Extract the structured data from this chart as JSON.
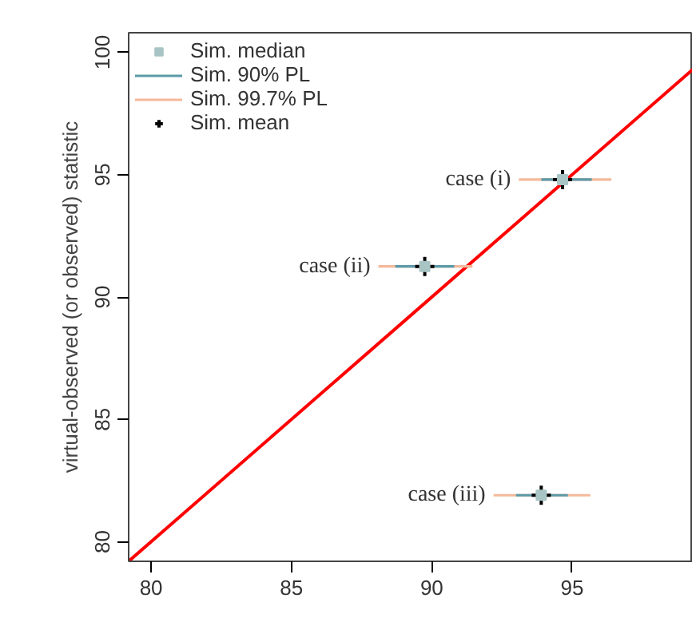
{
  "chart_data": {
    "type": "scatter",
    "ylabel": "virtual-observed (or observed) statistic",
    "xlim": [
      79.2,
      99.3
    ],
    "ylim": [
      79.2,
      100.8
    ],
    "xticks": [
      80,
      85,
      90,
      95
    ],
    "yticks": [
      80,
      85,
      90,
      95,
      100
    ],
    "grid": false,
    "legend": "top left",
    "series": [
      {
        "name": "Sim. median",
        "color": "#a9c4c4",
        "marker": "square",
        "x": [
          94.66,
          89.75,
          93.9
        ],
        "values": [
          94.8,
          91.25,
          81.9
        ]
      },
      {
        "name": "Sim. 90% PL",
        "type": "line",
        "color": "#5b9aa8",
        "x": [
          93.9,
          95.7
        ],
        "values": [
          94.8,
          94.8
        ]
      },
      {
        "type": "line",
        "color": "#5b9aa8",
        "x": [
          88.7,
          90.8
        ],
        "values": [
          91.25,
          91.25
        ]
      },
      {
        "type": "line",
        "color": "#5b9aa8",
        "x": [
          93.0,
          94.85
        ],
        "values": [
          81.9,
          81.9
        ]
      },
      {
        "name": "Sim. 99.7% PL",
        "type": "line",
        "color": "#f5b89a",
        "x": [
          93.1,
          96.4
        ],
        "values": [
          94.8,
          94.8
        ]
      },
      {
        "type": "line",
        "color": "#f5b89a",
        "x": [
          88.1,
          91.45
        ],
        "values": [
          91.25,
          91.25
        ]
      },
      {
        "type": "line",
        "color": "#f5b89a",
        "x": [
          92.2,
          95.65
        ],
        "values": [
          81.9,
          81.9
        ]
      },
      {
        "name": "Sim. mean",
        "color": "#000000",
        "marker": "cross",
        "x": [
          94.66,
          89.75,
          93.9
        ],
        "values": [
          94.8,
          91.25,
          81.9
        ]
      },
      {
        "type": "line",
        "color": "#ff0000",
        "x": [
          79.2,
          99.3
        ],
        "values": [
          79.2,
          99.3
        ]
      }
    ],
    "annotations": [
      {
        "text": "case (i)",
        "x": 93.1,
        "y": 94.8
      },
      {
        "text": "case (ii)",
        "x": 88.1,
        "y": 91.25
      },
      {
        "text": "case (iii)",
        "x": 92.2,
        "y": 81.9
      }
    ]
  }
}
